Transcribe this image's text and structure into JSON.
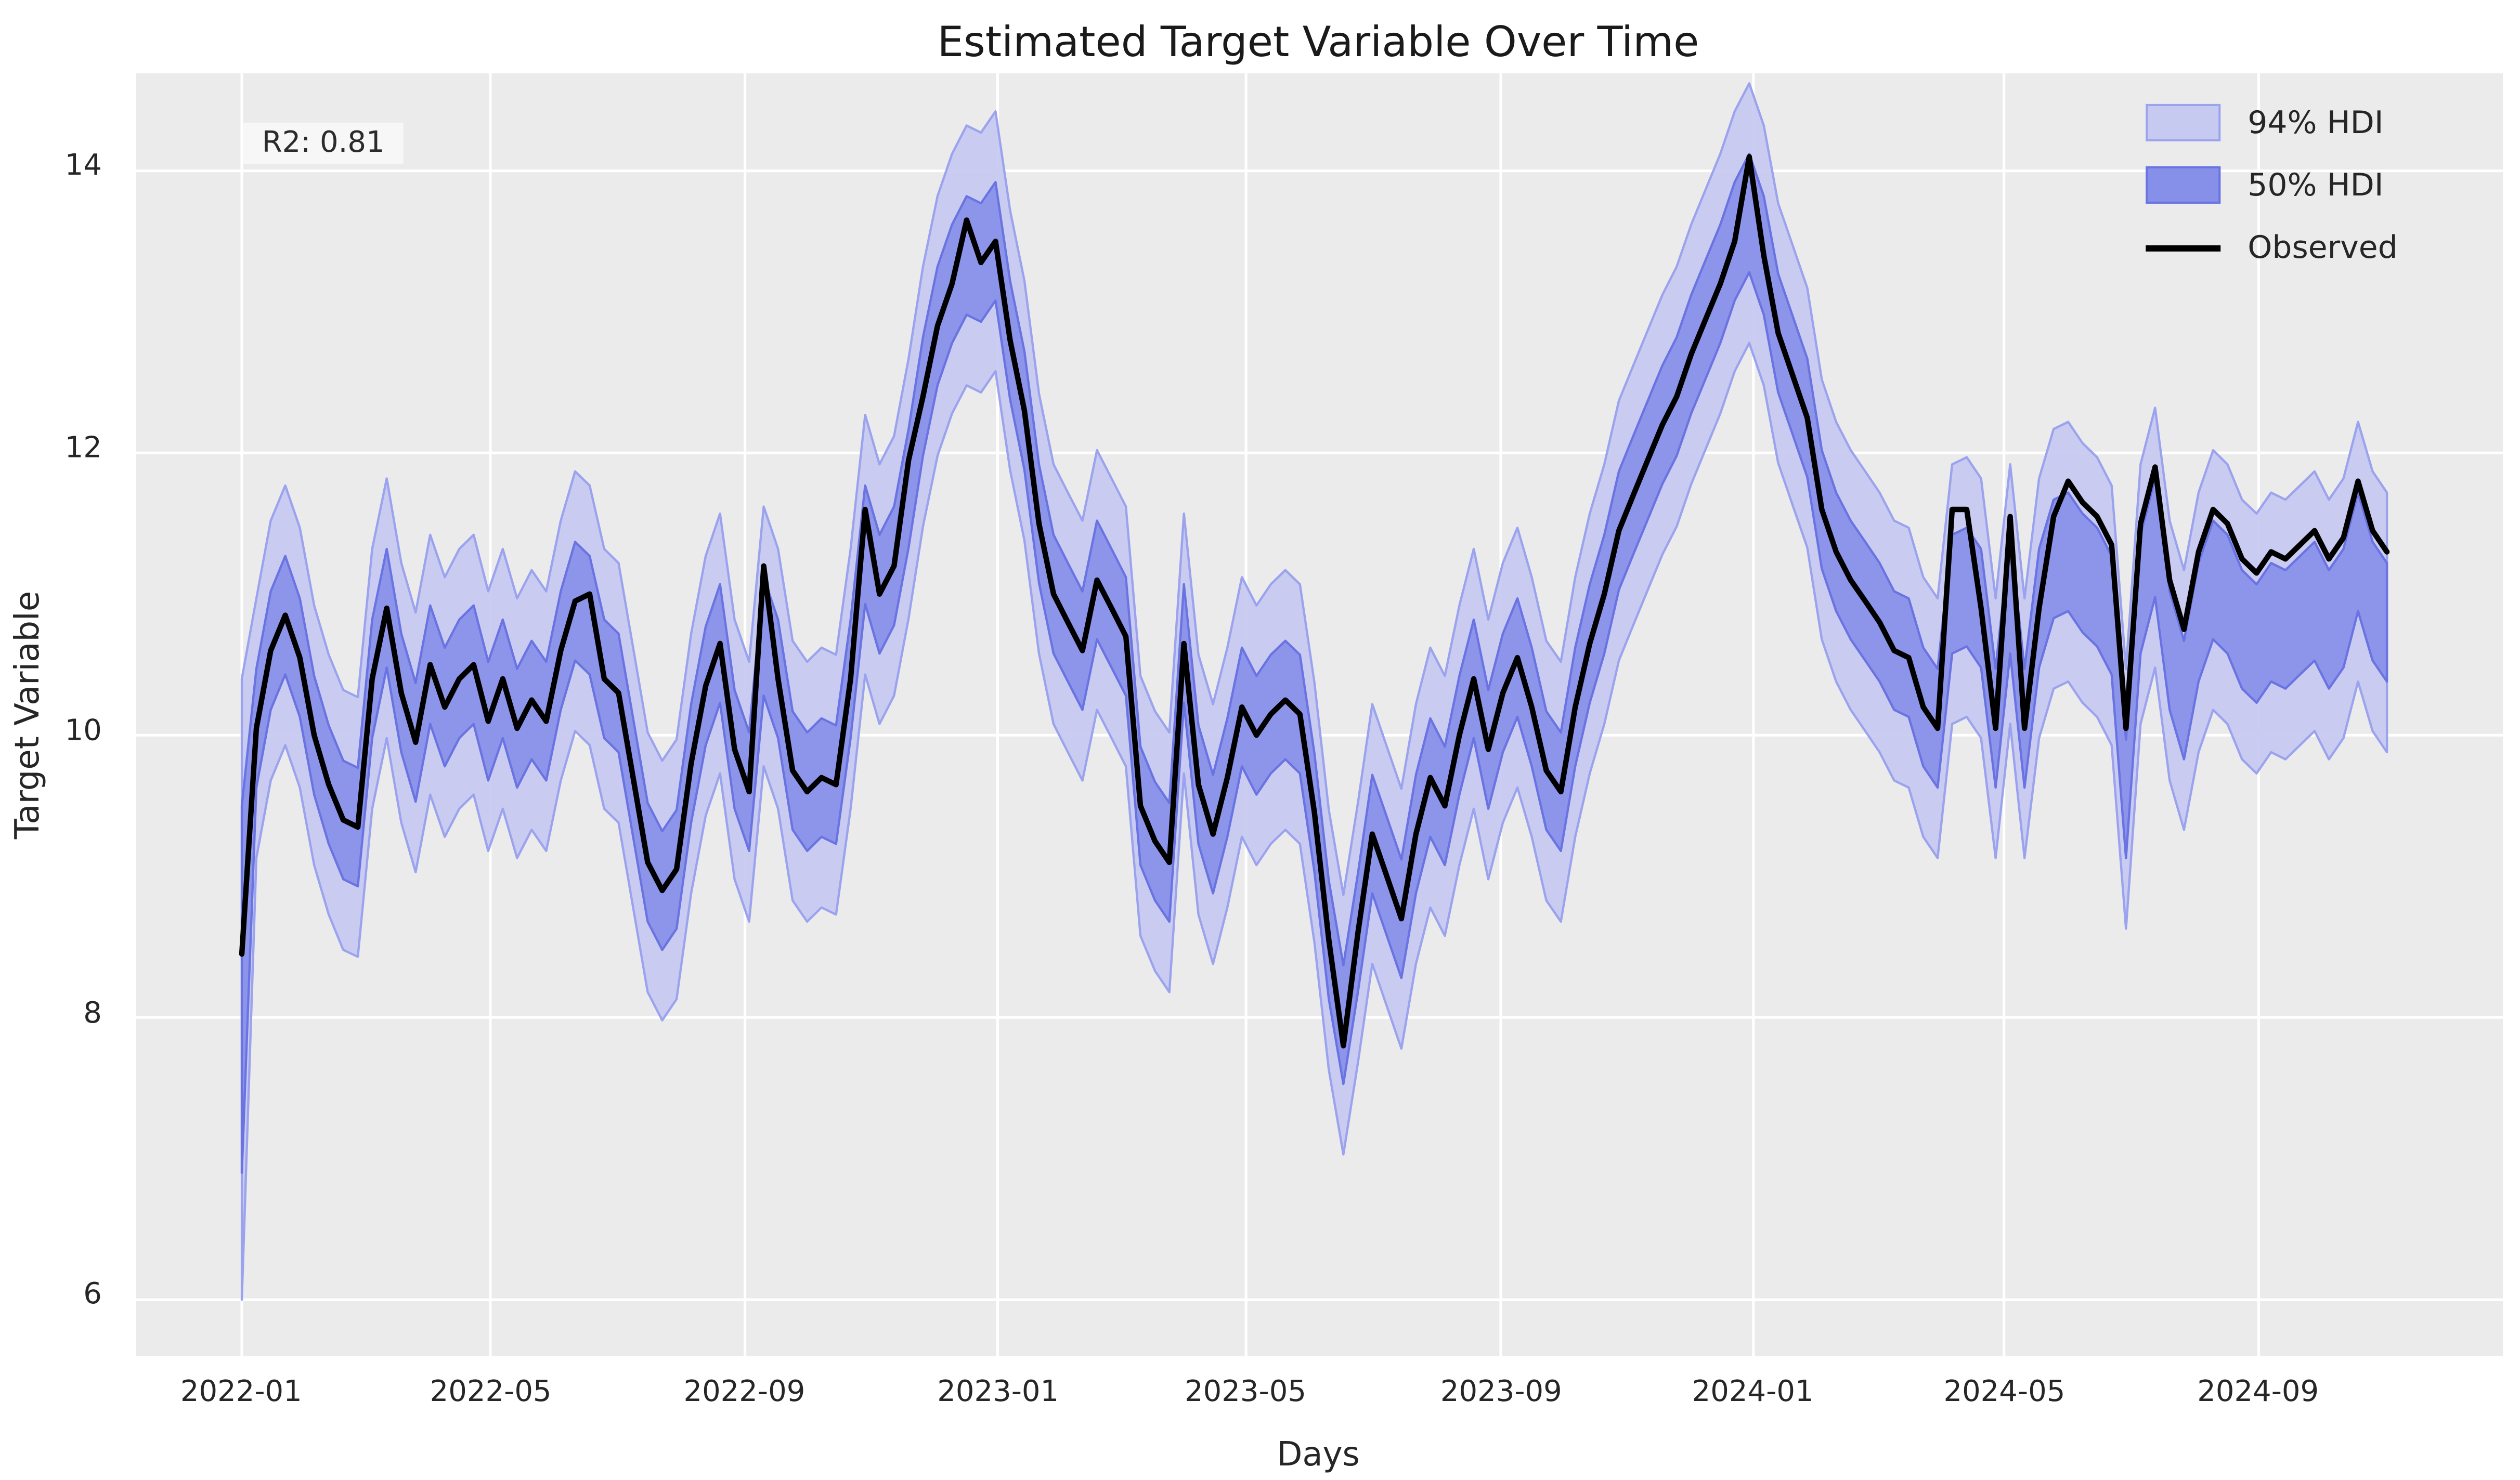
{
  "figure": {
    "title": "Estimated Target Variable Over Time"
  },
  "axes": {
    "xlabel": "Days",
    "ylabel": "Target Variable"
  },
  "annotation": {
    "text": "R2: 0.81",
    "bg": "#f7f7f7"
  },
  "legend": {
    "items": [
      {
        "label": "94% HDI",
        "type": "patch",
        "fill": "#c6c9f0",
        "edge": "#9ba3ee"
      },
      {
        "label": "50% HDI",
        "type": "patch",
        "fill": "#8790e8",
        "edge": "#6a73e2"
      },
      {
        "label": "Observed",
        "type": "line",
        "color": "#000000"
      }
    ]
  },
  "chart_data": {
    "type": "line",
    "title": "Estimated Target Variable Over Time",
    "xlabel": "Days",
    "ylabel": "Target Variable",
    "x_start_date": "2022-01-01",
    "x_step_days": 7,
    "xlim_days": [
      -51,
      1092
    ],
    "ylim": [
      5.6,
      14.69
    ],
    "yticks": [
      6,
      8,
      10,
      12,
      14
    ],
    "xtick_days": [
      0,
      120,
      243,
      365,
      485,
      608,
      730,
      851,
      974
    ],
    "xtick_labels": [
      "2022-01",
      "2022-05",
      "2022-09",
      "2023-01",
      "2023-05",
      "2023-09",
      "2024-01",
      "2024-05",
      "2024-09"
    ],
    "grid": true,
    "legend_position": "upper right",
    "annotation": "R2: 0.81",
    "colors": {
      "background": "#ebebeb",
      "grid": "#ffffff",
      "text": "#262626",
      "observed": "#000000",
      "hdi94_fill": "#c6c9f0",
      "hdi94_edge": "#9ba3ee",
      "hdi50_fill": "#8790e8",
      "hdi50_edge": "#6a73e2",
      "annotation_bg": "#f7f7f7"
    },
    "series": [
      {
        "name": "Observed",
        "type": "line",
        "color": "#000000",
        "values": [
          8.45,
          10.05,
          10.6,
          10.85,
          10.55,
          10.0,
          9.65,
          9.4,
          9.35,
          10.4,
          10.9,
          10.3,
          9.95,
          10.5,
          10.2,
          10.4,
          10.5,
          10.1,
          10.4,
          10.05,
          10.25,
          10.1,
          10.6,
          10.95,
          11.0,
          10.4,
          10.3,
          9.7,
          9.1,
          8.9,
          9.05,
          9.8,
          10.35,
          10.65,
          9.9,
          9.6,
          11.2,
          10.4,
          9.75,
          9.6,
          9.7,
          9.65,
          10.4,
          11.6,
          11.0,
          11.2,
          11.95,
          12.4,
          12.9,
          13.2,
          13.65,
          13.35,
          13.5,
          12.8,
          12.3,
          11.5,
          11.0,
          10.8,
          10.6,
          11.1,
          10.9,
          10.7,
          9.5,
          9.25,
          9.1,
          10.65,
          9.65,
          9.3,
          9.7,
          10.2,
          10.0,
          10.15,
          10.25,
          10.15,
          9.45,
          8.55,
          7.8,
          8.6,
          9.3,
          9.0,
          8.7,
          9.3,
          9.7,
          9.5,
          10.0,
          10.4,
          9.9,
          10.3,
          10.55,
          10.2,
          9.75,
          9.6,
          10.2,
          10.65,
          11.0,
          11.45,
          11.7,
          11.95,
          12.2,
          12.4,
          12.7,
          12.95,
          13.2,
          13.5,
          14.1,
          13.4,
          12.85,
          12.55,
          12.25,
          11.6,
          11.3,
          11.1,
          10.95,
          10.8,
          10.6,
          10.55,
          10.2,
          10.05,
          11.6,
          11.6,
          10.9,
          10.05,
          11.55,
          10.05,
          10.9,
          11.55,
          11.8,
          11.65,
          11.55,
          11.35,
          10.05,
          11.5,
          11.9,
          11.1,
          10.75,
          11.3,
          11.6,
          11.5,
          11.25,
          11.15,
          11.3,
          11.25,
          11.35,
          11.45,
          11.25,
          11.4,
          11.8,
          11.45,
          11.3
        ]
      },
      {
        "name": "94% HDI",
        "type": "band",
        "fill": "#c6c9f0",
        "edge": "#9ba3ee",
        "center": "hdi_mean",
        "halfwidth": 0.92,
        "first_point_halfwidth": 2.2
      },
      {
        "name": "50% HDI",
        "type": "band",
        "fill": "#8790e8",
        "edge": "#6a73e2",
        "center": "hdi_mean",
        "halfwidth": 0.42,
        "first_point_halfwidth": 1.3
      }
    ],
    "hdi_mean": [
      8.2,
      10.05,
      10.6,
      10.85,
      10.55,
      10.0,
      9.65,
      9.4,
      9.35,
      10.4,
      10.9,
      10.3,
      9.95,
      10.5,
      10.2,
      10.4,
      10.5,
      10.1,
      10.4,
      10.05,
      10.25,
      10.1,
      10.6,
      10.95,
      10.85,
      10.4,
      10.3,
      9.7,
      9.1,
      8.9,
      9.05,
      9.8,
      10.35,
      10.65,
      9.9,
      9.6,
      10.7,
      10.4,
      9.75,
      9.6,
      9.7,
      9.65,
      10.4,
      11.35,
      11.0,
      11.2,
      11.75,
      12.4,
      12.9,
      13.2,
      13.4,
      13.35,
      13.5,
      12.8,
      12.3,
      11.5,
      11.0,
      10.8,
      10.6,
      11.1,
      10.9,
      10.7,
      9.5,
      9.25,
      9.1,
      10.65,
      9.65,
      9.3,
      9.7,
      10.2,
      10.0,
      10.15,
      10.25,
      10.15,
      9.45,
      8.55,
      7.95,
      8.6,
      9.3,
      9.0,
      8.7,
      9.3,
      9.7,
      9.5,
      10.0,
      10.4,
      9.9,
      10.3,
      10.55,
      10.2,
      9.75,
      9.6,
      10.2,
      10.65,
      11.0,
      11.45,
      11.7,
      11.95,
      12.2,
      12.4,
      12.7,
      12.95,
      13.2,
      13.5,
      13.7,
      13.4,
      12.85,
      12.55,
      12.25,
      11.6,
      11.3,
      11.1,
      10.95,
      10.8,
      10.6,
      10.55,
      10.2,
      10.05,
      11.0,
      11.05,
      10.9,
      10.05,
      11.0,
      10.05,
      10.9,
      11.25,
      11.3,
      11.15,
      11.05,
      10.85,
      9.55,
      11.0,
      11.4,
      10.6,
      10.25,
      10.8,
      11.1,
      11.0,
      10.75,
      10.65,
      10.8,
      10.75,
      10.85,
      10.95,
      10.75,
      10.9,
      11.3,
      10.95,
      10.8
    ]
  }
}
